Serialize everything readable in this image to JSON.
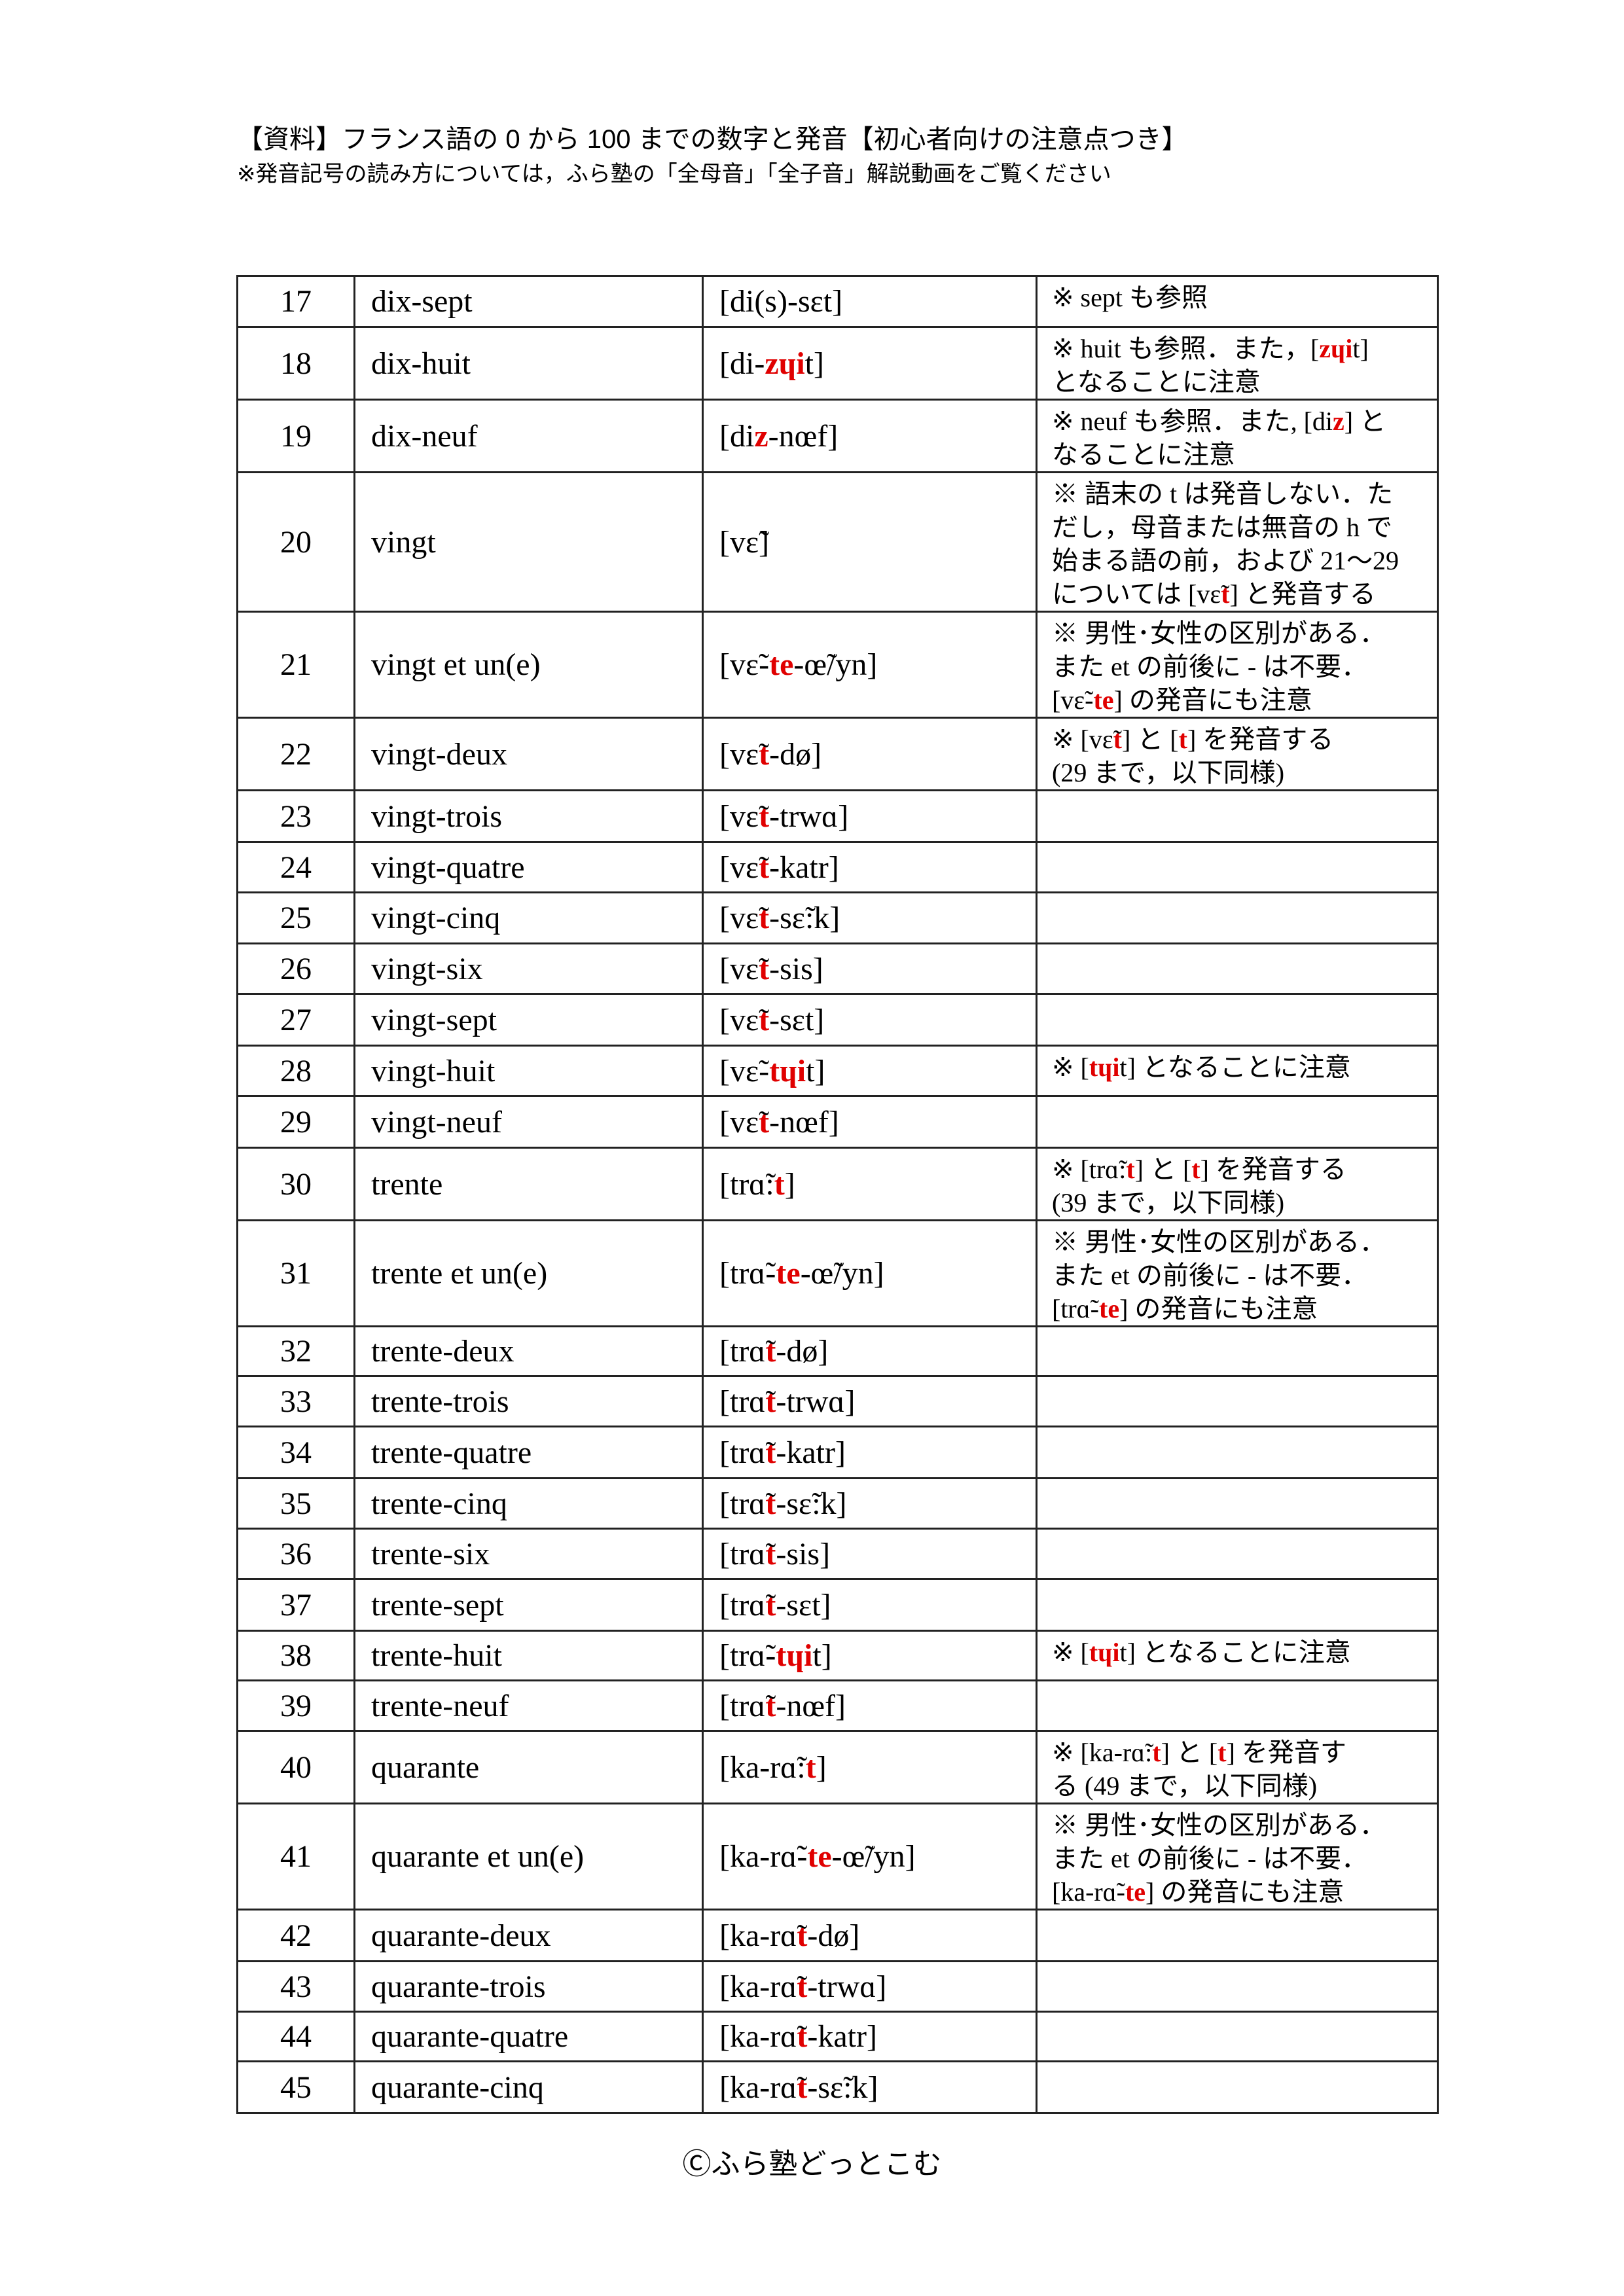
{
  "header": {
    "title": "【資料】フランス語の 0 から 100 までの数字と発音【初心者向けの注意点つき】",
    "subtitle": "※発音記号の読み方については，ふら塾の「全母音」「全子音」解説動画をご覧ください"
  },
  "colors": {
    "highlight": "#e00000",
    "border": "#222222"
  },
  "rows": [
    {
      "num": "17",
      "word": "dix-sept",
      "pron": [
        "[di(s)-sɛt]"
      ],
      "note": [
        [
          "※ sept も参照"
        ]
      ]
    },
    {
      "num": "18",
      "word": "dix-huit",
      "pron": [
        "[di-",
        {
          "red": "zɥi"
        },
        "t]"
      ],
      "note": [
        [
          "※ huit も参照．また，[",
          {
            "red": "zɥi"
          },
          "t]"
        ],
        [
          "となることに注意"
        ]
      ]
    },
    {
      "num": "19",
      "word": "dix-neuf",
      "pron": [
        "[di",
        {
          "red": "z"
        },
        "-nœf]"
      ],
      "note": [
        [
          "※ neuf も参照．また, [di",
          {
            "red": "z"
          },
          "] と"
        ],
        [
          "なることに注意"
        ]
      ]
    },
    {
      "num": "20",
      "word": "vingt",
      "pron": [
        "[vɛ̃]"
      ],
      "note": [
        [
          "※ 語末の t は発音しない．た"
        ],
        [
          "だし，母音または無音の h で"
        ],
        [
          "始まる語の前，および 21～29"
        ],
        [
          "については [vɛ̃",
          {
            "red": "t"
          },
          "] と発音する"
        ]
      ]
    },
    {
      "num": "21",
      "word": "vingt et un(e)",
      "pron": [
        "[vɛ̃-",
        {
          "red": "te"
        },
        "-œ̃/yn]"
      ],
      "note": [
        [
          "※ 男性･女性の区別がある．"
        ],
        [
          "また et の前後に - は不要．"
        ],
        [
          "[vɛ̃-",
          {
            "red": "te"
          },
          "] の発音にも注意"
        ]
      ]
    },
    {
      "num": "22",
      "word": "vingt-deux",
      "pron": [
        "[vɛ̃",
        {
          "red": "t"
        },
        "-dø]"
      ],
      "note": [
        [
          "※ [vɛ̃",
          {
            "red": "t"
          },
          "] と [",
          {
            "red": "t"
          },
          "] を発音する"
        ],
        [
          " (29 まで，以下同様)"
        ]
      ]
    },
    {
      "num": "23",
      "word": "vingt-trois",
      "pron": [
        "[vɛ̃",
        {
          "red": "t"
        },
        "-trwɑ]"
      ],
      "note": []
    },
    {
      "num": "24",
      "word": "vingt-quatre",
      "pron": [
        "[vɛ̃",
        {
          "red": "t"
        },
        "-katr]"
      ],
      "note": []
    },
    {
      "num": "25",
      "word": "vingt-cinq",
      "pron": [
        "[vɛ̃",
        {
          "red": "t"
        },
        "-sɛ̃:k]"
      ],
      "note": []
    },
    {
      "num": "26",
      "word": "vingt-six",
      "pron": [
        "[vɛ̃",
        {
          "red": "t"
        },
        "-sis]"
      ],
      "note": []
    },
    {
      "num": "27",
      "word": "vingt-sept",
      "pron": [
        "[vɛ̃",
        {
          "red": "t"
        },
        "-sɛt]"
      ],
      "note": []
    },
    {
      "num": "28",
      "word": "vingt-huit",
      "pron": [
        "[vɛ̃-",
        {
          "red": "tɥi"
        },
        "t]"
      ],
      "note": [
        [
          "※ [",
          {
            "red": "tɥi"
          },
          "t] となることに注意"
        ]
      ]
    },
    {
      "num": "29",
      "word": "vingt-neuf",
      "pron": [
        "[vɛ̃",
        {
          "red": "t"
        },
        "-nœf]"
      ],
      "note": []
    },
    {
      "num": "30",
      "word": "trente",
      "pron": [
        "[trɑ̃:",
        {
          "red": "t"
        },
        "]"
      ],
      "note": [
        [
          "※ [trɑ̃:",
          {
            "red": "t"
          },
          "] と [",
          {
            "red": "t"
          },
          "] を発音する"
        ],
        [
          " (39 まで，以下同様)"
        ]
      ]
    },
    {
      "num": "31",
      "word": "trente et un(e)",
      "pron": [
        "[trɑ̃-",
        {
          "red": "te"
        },
        "-œ̃/yn]"
      ],
      "note": [
        [
          "※ 男性･女性の区別がある．"
        ],
        [
          "また et の前後に - は不要．"
        ],
        [
          "[trɑ̃-",
          {
            "red": "te"
          },
          "] の発音にも注意"
        ]
      ]
    },
    {
      "num": "32",
      "word": "trente-deux",
      "pron": [
        "[trɑ̃",
        {
          "red": "t"
        },
        "-dø]"
      ],
      "note": []
    },
    {
      "num": "33",
      "word": "trente-trois",
      "pron": [
        "[trɑ̃",
        {
          "red": "t"
        },
        "-trwɑ]"
      ],
      "note": []
    },
    {
      "num": "34",
      "word": "trente-quatre",
      "pron": [
        "[trɑ̃",
        {
          "red": "t"
        },
        "-katr]"
      ],
      "note": []
    },
    {
      "num": "35",
      "word": "trente-cinq",
      "pron": [
        "[trɑ̃",
        {
          "red": "t"
        },
        "-sɛ̃:k]"
      ],
      "note": []
    },
    {
      "num": "36",
      "word": "trente-six",
      "pron": [
        "[trɑ̃",
        {
          "red": "t"
        },
        "-sis]"
      ],
      "note": []
    },
    {
      "num": "37",
      "word": "trente-sept",
      "pron": [
        "[trɑ̃",
        {
          "red": "t"
        },
        "-sɛt]"
      ],
      "note": []
    },
    {
      "num": "38",
      "word": "trente-huit",
      "pron": [
        "[trɑ̃-",
        {
          "red": "tɥi"
        },
        "t]"
      ],
      "note": [
        [
          "※ [",
          {
            "red": "tɥi"
          },
          "t] となることに注意"
        ]
      ]
    },
    {
      "num": "39",
      "word": "trente-neuf",
      "pron": [
        "[trɑ̃",
        {
          "red": "t"
        },
        "-nœf]"
      ],
      "note": []
    },
    {
      "num": "40",
      "word": "quarante",
      "pron": [
        "[ka-rɑ̃:",
        {
          "red": "t"
        },
        "]"
      ],
      "note": [
        [
          "※ [ka-rɑ̃:",
          {
            "red": "t"
          },
          "] と [",
          {
            "red": "t"
          },
          "] を発音す"
        ],
        [
          "る (49 まで，以下同様)"
        ]
      ]
    },
    {
      "num": "41",
      "word": "quarante et un(e)",
      "pron": [
        "[ka-rɑ̃-",
        {
          "red": "te"
        },
        "-œ̃/yn]"
      ],
      "note": [
        [
          "※ 男性･女性の区別がある．"
        ],
        [
          "また et の前後に - は不要．"
        ],
        [
          "[ka-rɑ̃-",
          {
            "red": "te"
          },
          "] の発音にも注意"
        ]
      ]
    },
    {
      "num": "42",
      "word": "quarante-deux",
      "pron": [
        "[ka-rɑ̃",
        {
          "red": "t"
        },
        "-dø]"
      ],
      "note": []
    },
    {
      "num": "43",
      "word": "quarante-trois",
      "pron": [
        "[ka-rɑ̃",
        {
          "red": "t"
        },
        "-trwɑ]"
      ],
      "note": []
    },
    {
      "num": "44",
      "word": "quarante-quatre",
      "pron": [
        "[ka-rɑ̃",
        {
          "red": "t"
        },
        "-katr]"
      ],
      "note": []
    },
    {
      "num": "45",
      "word": "quarante-cinq",
      "pron": [
        "[ka-rɑ̃",
        {
          "red": "t"
        },
        "-sɛ̃:k]"
      ],
      "note": []
    }
  ],
  "footer": {
    "copyright": "Ⓒふら塾どっとこむ"
  }
}
